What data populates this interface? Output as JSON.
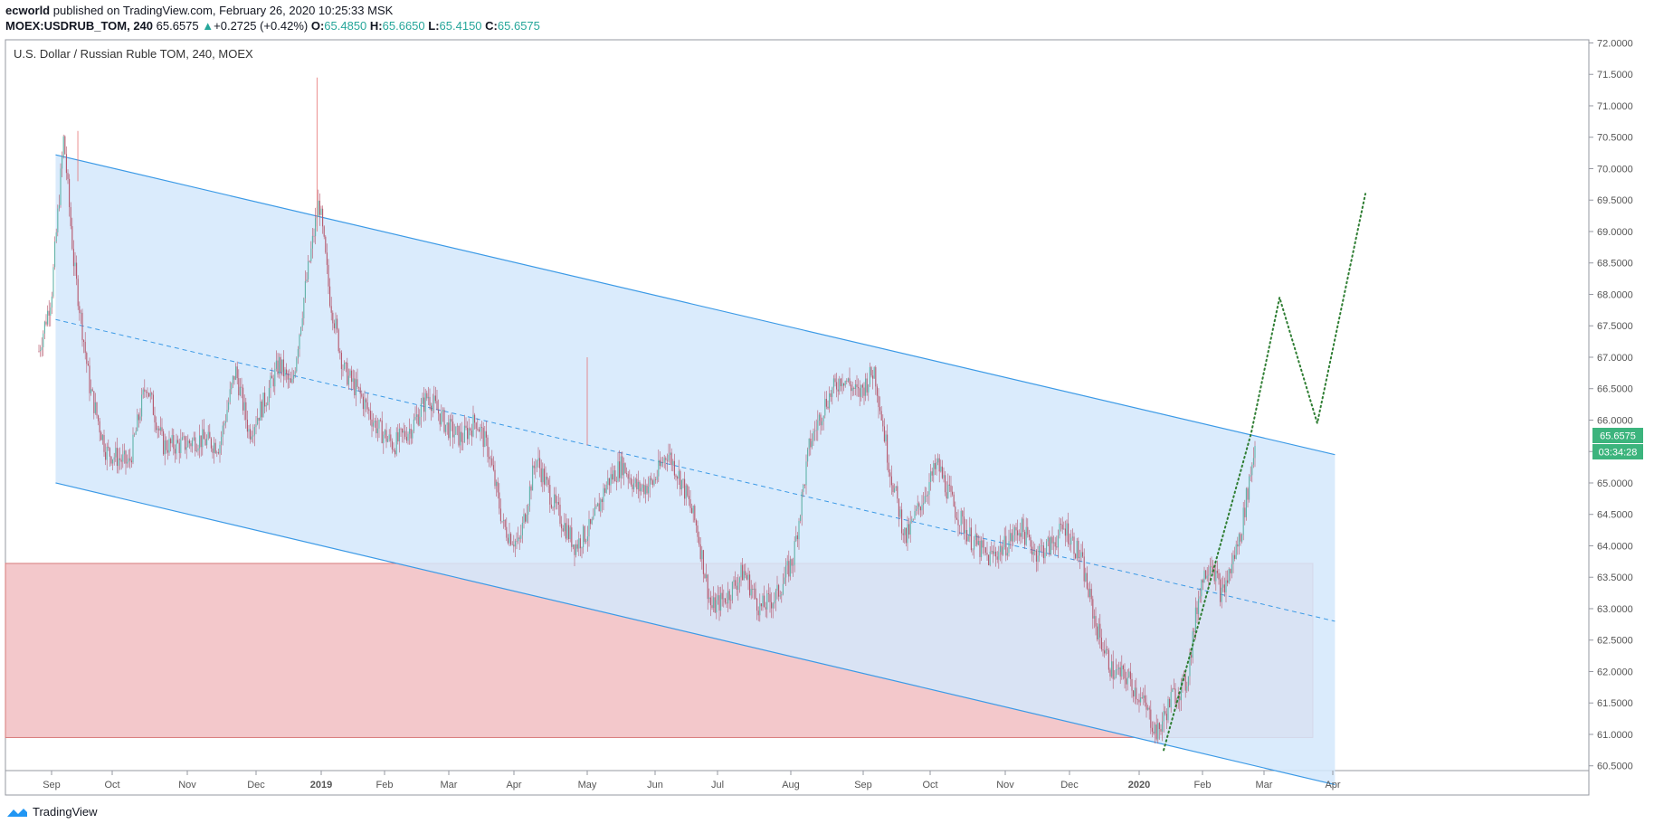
{
  "header": {
    "author": "ecworld",
    "published_text": "published on TradingView.com, February 26, 2020 10:25:33 MSK",
    "symbol": "MOEX:USDRUB_TOM, 240",
    "last": "65.6575",
    "change": "+0.2725 (+0.42%)",
    "o_label": "O:",
    "o_value": "65.4850",
    "h_label": "H:",
    "h_value": "65.6650",
    "l_label": "L:",
    "l_value": "65.4150",
    "c_label": "C:",
    "c_value": "65.6575"
  },
  "footer": {
    "brand": "TradingView"
  },
  "colors": {
    "up": "#26a69a",
    "candle": "#b5566b",
    "channel_fill": "#d3e8fb",
    "channel_line": "#3c9ae6",
    "zone_fill": "#f3c8cb",
    "zone_border": "#d77a7a",
    "projection": "#2e7d32",
    "price_tag": "#3cb47d"
  },
  "chart_data": {
    "type": "candlestick",
    "title": "U.S. Dollar / Russian Ruble TOM, 240, MOEX",
    "x_tick_labels": [
      "Sep",
      "Oct",
      "Nov",
      "Dec",
      "2019",
      "Feb",
      "Mar",
      "Apr",
      "May",
      "Jun",
      "Jul",
      "Aug",
      "Sep",
      "Oct",
      "Nov",
      "Dec",
      "2020",
      "Feb",
      "Mar",
      "Apr"
    ],
    "y_tick_labels": [
      "72.0000",
      "71.5000",
      "71.0000",
      "70.5000",
      "70.0000",
      "69.5000",
      "69.0000",
      "68.5000",
      "68.0000",
      "67.5000",
      "67.0000",
      "66.5000",
      "66.0000",
      "65.5000",
      "65.0000",
      "64.5000",
      "64.0000",
      "63.5000",
      "63.0000",
      "62.5000",
      "62.0000",
      "61.5000",
      "61.0000",
      "60.5000"
    ],
    "ylim": [
      60.25,
      72.05
    ],
    "y_scale": "linear",
    "grid": false,
    "current_price_label": "65.6575",
    "countdown_label": "03:34:28",
    "price_path": [
      [
        "Aug 25",
        67.1
      ],
      [
        "Sep 1",
        68.0
      ],
      [
        "Sep 7",
        70.5
      ],
      [
        "Sep 12",
        68.5
      ],
      [
        "Sep 20",
        66.5
      ],
      [
        "Sep 28",
        65.5
      ],
      [
        "Oct 8",
        65.3
      ],
      [
        "Oct 15",
        66.6
      ],
      [
        "Oct 22",
        65.6
      ],
      [
        "Oct 30",
        65.6
      ],
      [
        "Nov 6",
        65.7
      ],
      [
        "Nov 15",
        65.6
      ],
      [
        "Nov 22",
        66.8
      ],
      [
        "Nov 28",
        65.8
      ],
      [
        "Dec 5",
        66.3
      ],
      [
        "Dec 12",
        66.9
      ],
      [
        "Dec 18",
        66.5
      ],
      [
        "Dec 24",
        68.0
      ],
      [
        "Dec 31",
        69.5
      ],
      [
        "Jan 5",
        68.0
      ],
      [
        "Jan 12",
        66.8
      ],
      [
        "Jan 20",
        66.4
      ],
      [
        "Jan 28",
        65.9
      ],
      [
        "Feb 5",
        65.6
      ],
      [
        "Feb 13",
        65.9
      ],
      [
        "Feb 20",
        66.4
      ],
      [
        "Feb 28",
        65.9
      ],
      [
        "Mar 7",
        65.7
      ],
      [
        "Mar 14",
        66.0
      ],
      [
        "Mar 20",
        65.5
      ],
      [
        "Mar 27",
        64.3
      ],
      [
        "Apr 3",
        64.0
      ],
      [
        "Apr 10",
        65.4
      ],
      [
        "Apr 18",
        64.6
      ],
      [
        "Apr 26",
        64.0
      ],
      [
        "May 3",
        64.3
      ],
      [
        "May 10",
        65.0
      ],
      [
        "May 17",
        65.3
      ],
      [
        "May 24",
        64.9
      ],
      [
        "May 31",
        65.0
      ],
      [
        "Jun 7",
        65.5
      ],
      [
        "Jun 14",
        65.0
      ],
      [
        "Jun 21",
        64.3
      ],
      [
        "Jun 28",
        63.0
      ],
      [
        "Jul 5",
        63.2
      ],
      [
        "Jul 12",
        63.6
      ],
      [
        "Jul 19",
        63.0
      ],
      [
        "Jul 26",
        63.2
      ],
      [
        "Aug 2",
        63.8
      ],
      [
        "Aug 9",
        65.6
      ],
      [
        "Aug 16",
        66.3
      ],
      [
        "Aug 23",
        66.7
      ],
      [
        "Aug 30",
        66.4
      ],
      [
        "Sep 6",
        66.8
      ],
      [
        "Sep 13",
        65.2
      ],
      [
        "Sep 20",
        64.1
      ],
      [
        "Sep 27",
        64.7
      ],
      [
        "Oct 4",
        65.3
      ],
      [
        "Oct 11",
        64.6
      ],
      [
        "Oct 18",
        64.1
      ],
      [
        "Oct 25",
        63.8
      ],
      [
        "Nov 1",
        64.0
      ],
      [
        "Nov 8",
        64.3
      ],
      [
        "Nov 15",
        63.9
      ],
      [
        "Nov 22",
        64.0
      ],
      [
        "Nov 29",
        64.3
      ],
      [
        "Dec 6",
        63.8
      ],
      [
        "Dec 13",
        62.7
      ],
      [
        "Dec 20",
        62.0
      ],
      [
        "Dec 27",
        61.9
      ],
      [
        "Jan 3",
        61.5
      ],
      [
        "Jan 10",
        61.0
      ],
      [
        "Jan 17",
        61.6
      ],
      [
        "Jan 24",
        61.8
      ],
      [
        "Jan 31",
        63.4
      ],
      [
        "Feb 5",
        63.8
      ],
      [
        "Feb 10",
        63.2
      ],
      [
        "Feb 14",
        63.6
      ],
      [
        "Feb 19",
        64.2
      ],
      [
        "Feb 26",
        65.66
      ]
    ],
    "annotations": {
      "channel_upper": [
        [
          "Sep 3, 2018",
          70.22
        ],
        [
          "Apr 2, 2020",
          65.45
        ]
      ],
      "channel_middle": [
        [
          "Sep 3, 2018",
          67.6
        ],
        [
          "Apr 2, 2020",
          62.8
        ]
      ],
      "channel_lower": [
        [
          "Sep 3, 2018",
          65.0
        ],
        [
          "Apr 2, 2020",
          60.2
        ]
      ],
      "support_zone": {
        "from": "Aug 2018",
        "to": "Mar 2020",
        "y_range": [
          60.95,
          63.72
        ]
      },
      "projection": [
        [
          "Jan 13, 2020",
          60.75
        ],
        [
          "Feb 24, 2020",
          65.8
        ],
        [
          "Mar 8, 2020",
          67.95
        ],
        [
          "Mar 25, 2020",
          65.95
        ],
        [
          "Apr 16, 2020",
          69.6
        ]
      ]
    }
  }
}
